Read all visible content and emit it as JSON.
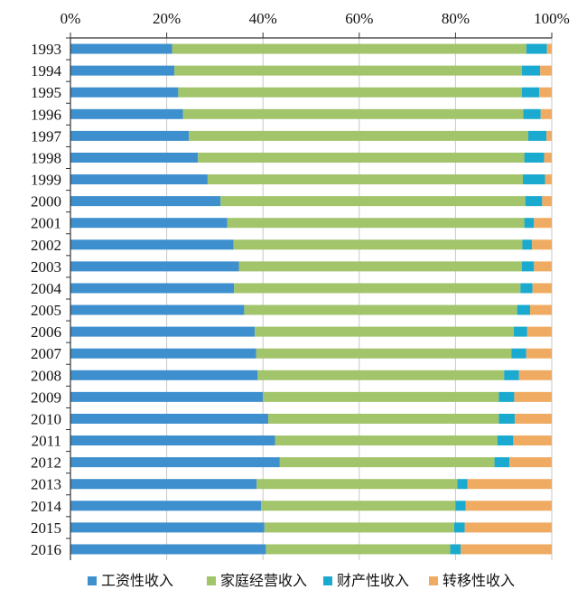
{
  "chart_data": {
    "type": "bar",
    "orientation": "horizontal",
    "stacked": "percent",
    "title": "",
    "xlabel": "",
    "ylabel": "",
    "xlim": [
      0,
      100
    ],
    "x_ticks": [
      "0%",
      "20%",
      "40%",
      "60%",
      "80%",
      "100%"
    ],
    "grid": true,
    "legend_position": "bottom",
    "categories": [
      "1993",
      "1994",
      "1995",
      "1996",
      "1997",
      "1998",
      "1999",
      "2000",
      "2001",
      "2002",
      "2003",
      "2004",
      "2005",
      "2006",
      "2007",
      "2008",
      "2009",
      "2010",
      "2011",
      "2012",
      "2013",
      "2014",
      "2015",
      "2016"
    ],
    "series": [
      {
        "name": "工资性收入",
        "color": "#3d8fce",
        "values": [
          21.1,
          21.6,
          22.4,
          23.4,
          24.6,
          26.5,
          28.5,
          31.2,
          32.6,
          33.9,
          35.0,
          34.0,
          36.1,
          38.3,
          38.6,
          38.9,
          40.0,
          41.1,
          42.5,
          43.5,
          38.7,
          39.6,
          40.3,
          40.6
        ]
      },
      {
        "name": "家庭经营收入",
        "color": "#a2c46b",
        "values": [
          73.6,
          72.2,
          71.4,
          70.7,
          70.5,
          67.8,
          65.5,
          63.3,
          61.7,
          60.0,
          58.8,
          59.5,
          56.7,
          53.8,
          53.0,
          51.2,
          49.0,
          47.9,
          46.2,
          44.6,
          41.7,
          40.4,
          39.4,
          38.3
        ]
      },
      {
        "name": "财产性收入",
        "color": "#1aa9cf",
        "values": [
          4.3,
          3.8,
          3.6,
          3.6,
          3.8,
          4.1,
          4.6,
          3.5,
          2.0,
          2.0,
          2.5,
          2.5,
          2.7,
          2.8,
          3.1,
          3.1,
          3.2,
          3.3,
          3.3,
          3.1,
          2.1,
          2.1,
          2.2,
          2.2
        ]
      },
      {
        "name": "转移性收入",
        "color": "#f0ab62",
        "values": [
          1.0,
          2.4,
          2.6,
          2.3,
          1.1,
          1.6,
          1.4,
          2.0,
          3.7,
          4.1,
          3.7,
          4.0,
          4.5,
          5.1,
          5.3,
          6.8,
          7.8,
          7.7,
          8.0,
          8.8,
          17.5,
          17.9,
          18.1,
          18.9
        ]
      }
    ]
  }
}
